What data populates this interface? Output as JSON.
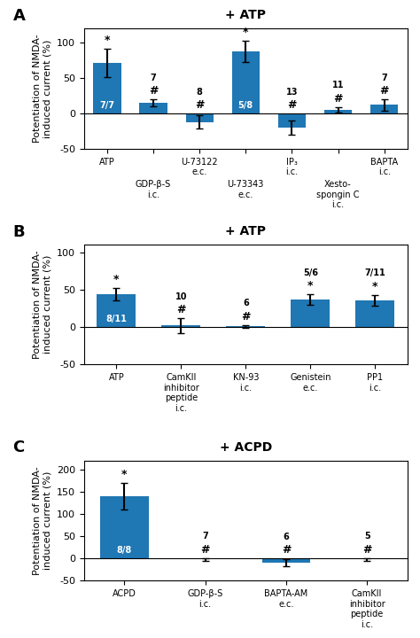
{
  "chart_data": [
    {
      "type": "bar",
      "panel_label": "A",
      "title": "+ ATP",
      "ylabel": "Potentiation of NMDA-\ninduced current (%)",
      "categories": [
        "ATP",
        "GDP-β-S\ni.c.",
        "U-73122\ne.c.",
        "U-73343\ne.c.",
        "IP₃\ni.c.",
        "Xesto-\nspongin C\ni.c.",
        "BAPTA\ni.c."
      ],
      "values": [
        72,
        15,
        -12,
        88,
        -20,
        5,
        12
      ],
      "errors": [
        20,
        5,
        10,
        15,
        10,
        4,
        8
      ],
      "n_labels": [
        "7/7",
        "7",
        "8",
        "5/8",
        "13",
        "11",
        "7"
      ],
      "significance": [
        "*",
        "#",
        "#",
        "*",
        "#",
        "#",
        "#"
      ],
      "ylim": [
        -50,
        120
      ],
      "yticks": [
        -50,
        0,
        50,
        100
      ]
    },
    {
      "type": "bar",
      "panel_label": "B",
      "title": "+ ATP",
      "ylabel": "Potentiation of NMDA-\ninduced current (%)",
      "categories": [
        "ATP",
        "CamKII\ninhibitor\npeptide\ni.c.",
        "KN-93\ni.c.",
        "Genistein\ne.c.",
        "PP1\ni.c."
      ],
      "values": [
        44,
        2,
        1,
        37,
        36
      ],
      "errors": [
        8,
        10,
        2,
        7,
        7
      ],
      "n_labels": [
        "8/11",
        "10",
        "6",
        "5/6",
        "7/11"
      ],
      "significance": [
        "*",
        "#",
        "#",
        "*",
        "*"
      ],
      "ylim": [
        -50,
        110
      ],
      "yticks": [
        -50,
        0,
        50,
        100
      ]
    },
    {
      "type": "bar",
      "panel_label": "C",
      "title": "+ ACPD",
      "ylabel": "Potentiation of NMDA-\ninduced current (%)",
      "categories": [
        "ACPD",
        "GDP-β-S\ni.c.",
        "BAPTA-AM\ne.c.",
        "CamKII\ninhibitor\npeptide\ni.c."
      ],
      "values": [
        140,
        -2,
        -10,
        -2
      ],
      "errors": [
        30,
        3,
        8,
        3
      ],
      "n_labels": [
        "8/8",
        "7",
        "6",
        "5"
      ],
      "significance": [
        "*",
        "#",
        "#",
        "#"
      ],
      "ylim": [
        -50,
        220
      ],
      "yticks": [
        -50,
        0,
        50,
        100,
        150,
        200
      ]
    }
  ]
}
